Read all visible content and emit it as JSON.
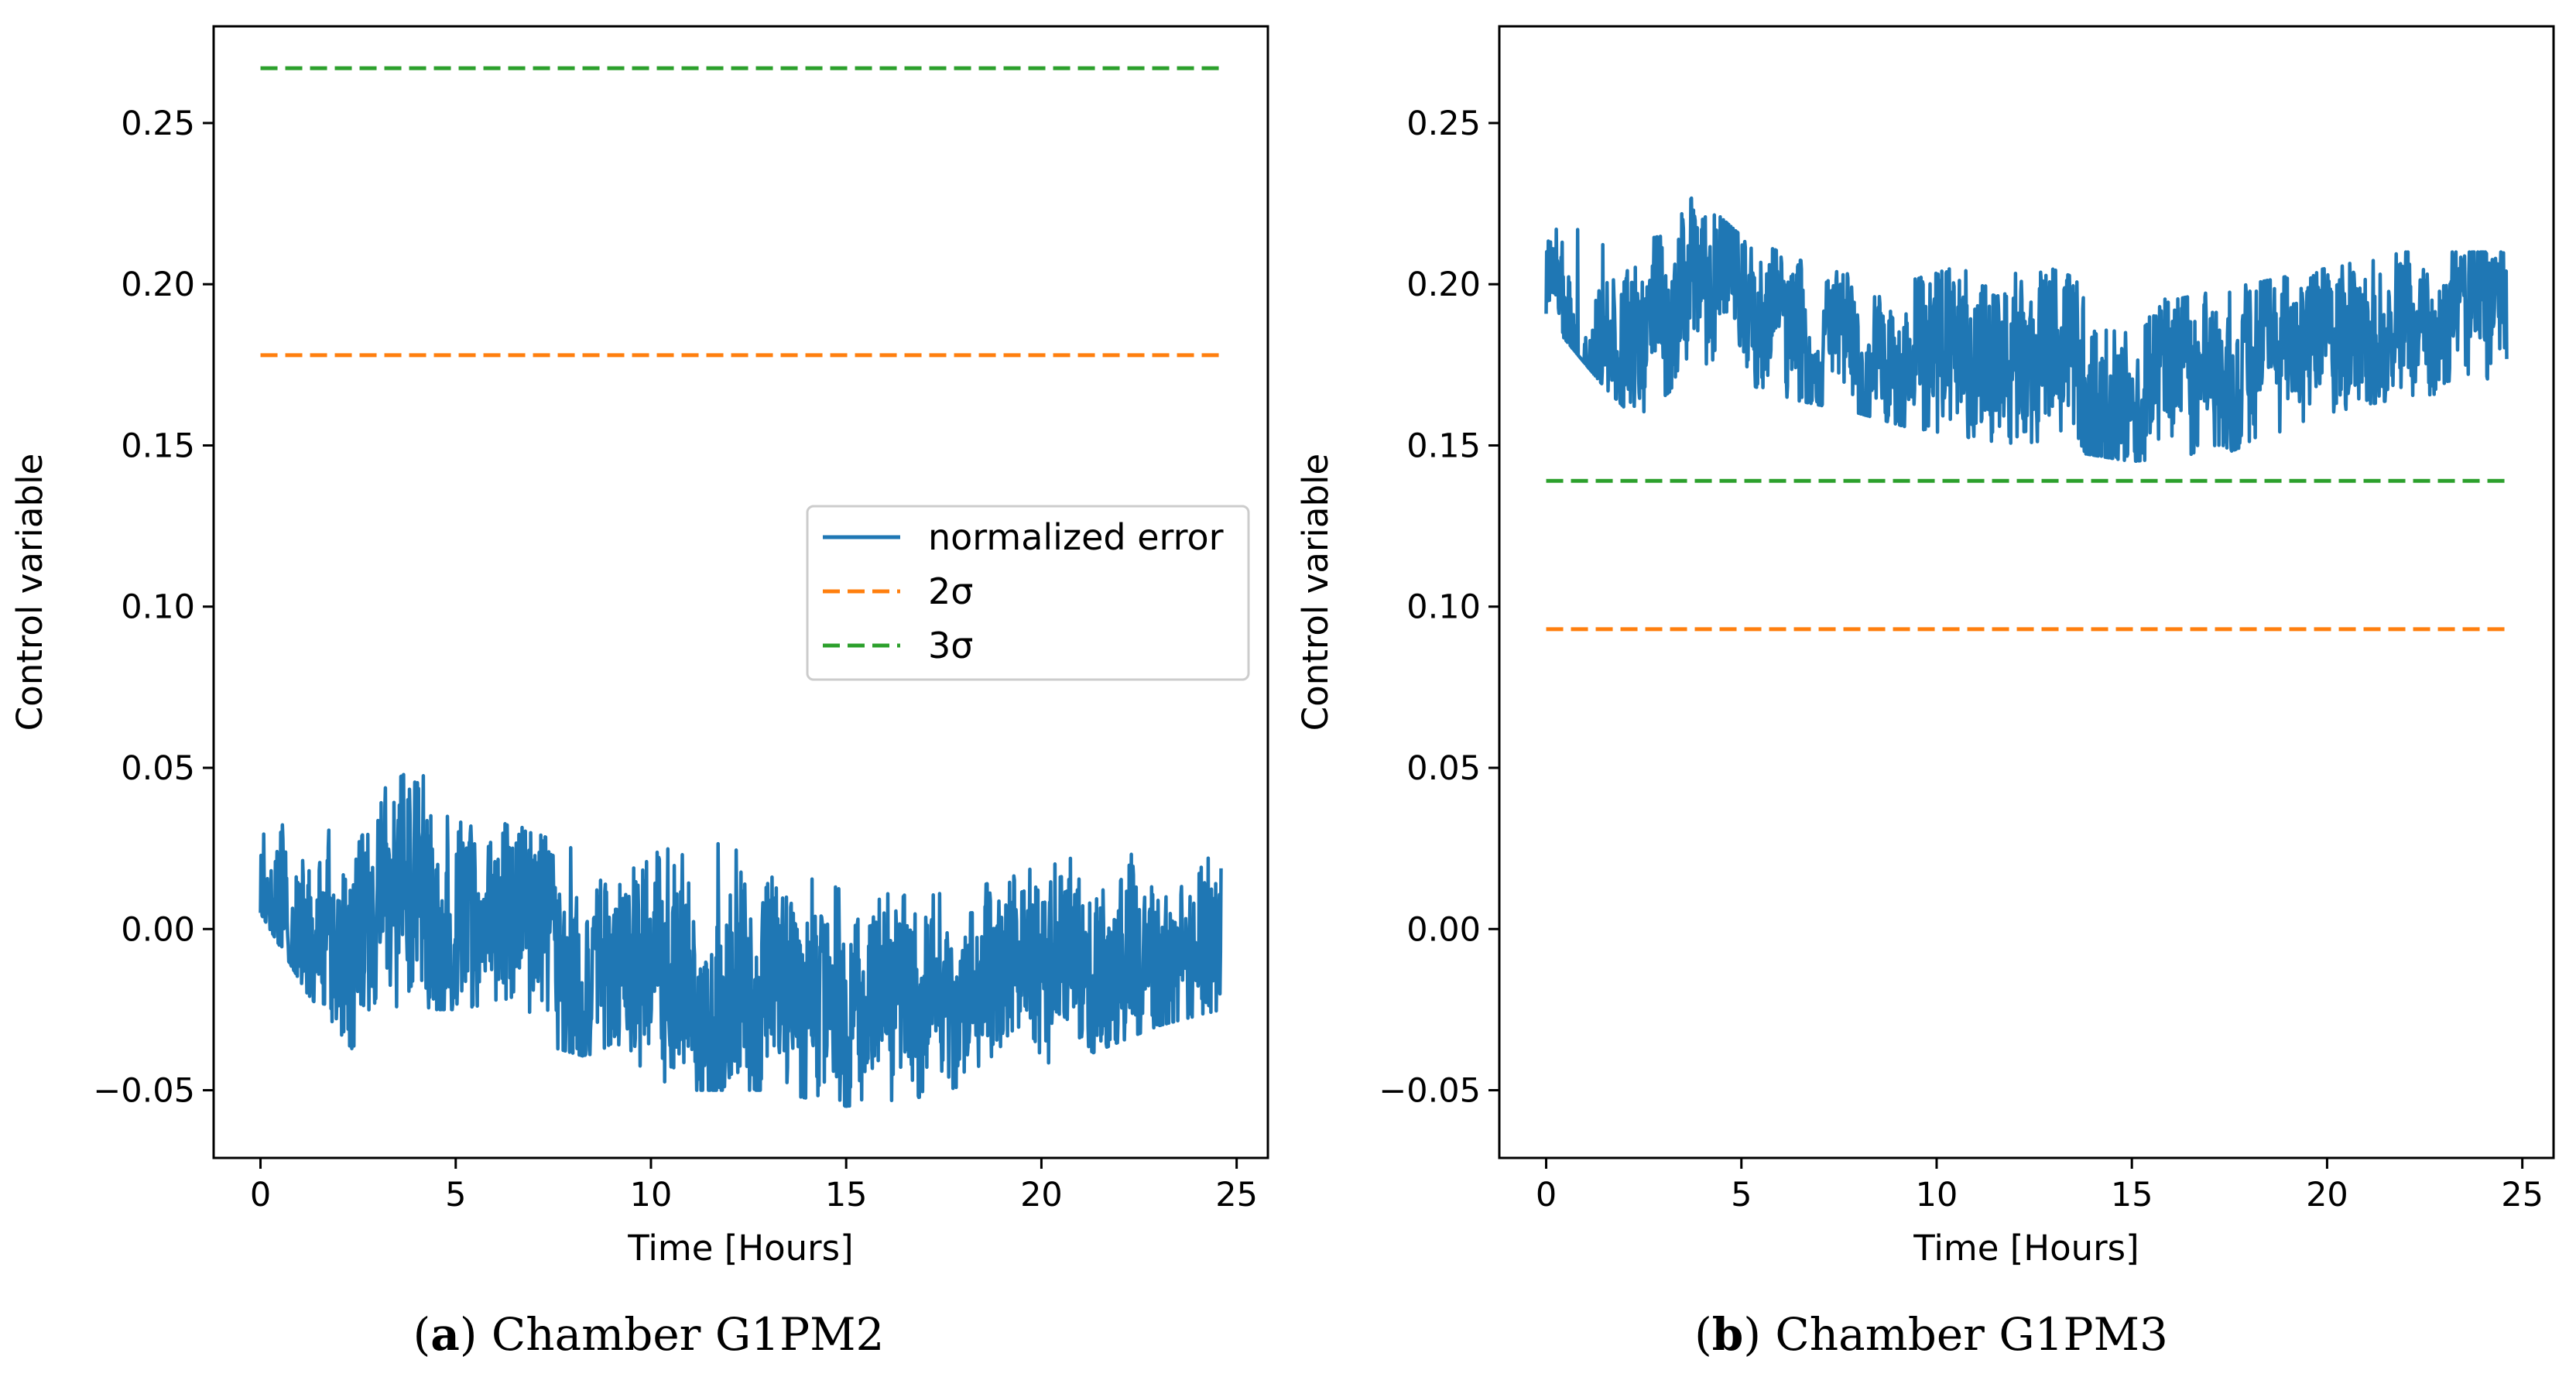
{
  "chart_data": [
    {
      "type": "line",
      "panel_letter": "a",
      "caption": "Chamber G1PM2",
      "xlabel": "Time [Hours]",
      "ylabel": "Control variable",
      "xlim": [
        -1.2,
        25.8
      ],
      "ylim": [
        -0.071,
        0.28
      ],
      "xticks": [
        0,
        5,
        10,
        15,
        20,
        25
      ],
      "yticks": [
        -0.05,
        0.0,
        0.05,
        0.1,
        0.15,
        0.2,
        0.25
      ],
      "ytick_labels": [
        "−0.05",
        "0.00",
        "0.05",
        "0.10",
        "0.15",
        "0.20",
        "0.25"
      ],
      "grid": false,
      "legend": {
        "placement": "center-right",
        "entries": [
          "normalized error",
          "2σ",
          "3σ"
        ]
      },
      "series": [
        {
          "name": "normalized error",
          "style": "solid",
          "color": "#1f77b4",
          "x_range": [
            0,
            24.6
          ],
          "trend": {
            "x": [
              0,
              1,
              2,
              3,
              4,
              5,
              6,
              7,
              8,
              9,
              10,
              11,
              12,
              13,
              14,
              15,
              16,
              17,
              18,
              19,
              20,
              21,
              22,
              23,
              24,
              24.6
            ],
            "y": [
              0.012,
              0.0,
              -0.008,
              0.005,
              0.014,
              0.008,
              0.003,
              -0.003,
              -0.007,
              -0.012,
              -0.015,
              -0.02,
              -0.022,
              -0.021,
              -0.02,
              -0.022,
              -0.02,
              -0.018,
              -0.016,
              -0.015,
              -0.012,
              -0.01,
              -0.008,
              -0.006,
              -0.005,
              -0.004
            ]
          },
          "band_min": [
            {
              "x": 0,
              "y": 0.005
            },
            {
              "x": 1.2,
              "y": -0.02
            },
            {
              "x": 2.4,
              "y": -0.038
            },
            {
              "x": 3.5,
              "y": -0.025
            },
            {
              "x": 5,
              "y": -0.025
            },
            {
              "x": 7,
              "y": -0.035
            },
            {
              "x": 9,
              "y": -0.042
            },
            {
              "x": 11,
              "y": -0.05
            },
            {
              "x": 13,
              "y": -0.05
            },
            {
              "x": 15,
              "y": -0.055
            },
            {
              "x": 17,
              "y": -0.052
            },
            {
              "x": 19,
              "y": -0.045
            },
            {
              "x": 21,
              "y": -0.04
            },
            {
              "x": 23,
              "y": -0.03
            },
            {
              "x": 24.6,
              "y": -0.025
            }
          ],
          "band_max": [
            {
              "x": 0,
              "y": 0.045
            },
            {
              "x": 1.5,
              "y": 0.03
            },
            {
              "x": 3,
              "y": 0.042
            },
            {
              "x": 3.9,
              "y": 0.05
            },
            {
              "x": 5,
              "y": 0.04
            },
            {
              "x": 7,
              "y": 0.03
            },
            {
              "x": 9,
              "y": 0.02
            },
            {
              "x": 11.3,
              "y": 0.03
            },
            {
              "x": 13,
              "y": 0.02
            },
            {
              "x": 15,
              "y": 0.012
            },
            {
              "x": 17,
              "y": 0.01
            },
            {
              "x": 19,
              "y": 0.015
            },
            {
              "x": 21,
              "y": 0.025
            },
            {
              "x": 23,
              "y": 0.025
            },
            {
              "x": 24.6,
              "y": 0.028
            }
          ]
        },
        {
          "name": "2σ",
          "style": "dashed",
          "color": "#ff7f0e",
          "x": [
            0,
            24.6
          ],
          "y": [
            0.178,
            0.178
          ]
        },
        {
          "name": "3σ",
          "style": "dashed",
          "color": "#2ca02c",
          "x": [
            0,
            24.6
          ],
          "y": [
            0.267,
            0.267
          ]
        }
      ]
    },
    {
      "type": "line",
      "panel_letter": "b",
      "caption": "Chamber G1PM3",
      "xlabel": "Time [Hours]",
      "ylabel": "Control variable",
      "xlim": [
        -1.2,
        25.8
      ],
      "ylim": [
        -0.071,
        0.28
      ],
      "xticks": [
        0,
        5,
        10,
        15,
        20,
        25
      ],
      "yticks": [
        -0.05,
        0.0,
        0.05,
        0.1,
        0.15,
        0.2,
        0.25
      ],
      "ytick_labels": [
        "−0.05",
        "0.00",
        "0.05",
        "0.10",
        "0.15",
        "0.20",
        "0.25"
      ],
      "grid": false,
      "legend": null,
      "series": [
        {
          "name": "normalized error",
          "style": "solid",
          "color": "#1f77b4",
          "x_range": [
            0,
            24.6
          ],
          "trend": {
            "x": [
              0,
              1,
              2,
              3,
              4,
              5,
              6,
              7,
              8,
              9,
              10,
              11,
              12,
              13,
              14,
              15,
              16,
              17,
              18,
              19,
              20,
              21,
              22,
              23,
              24,
              24.6
            ],
            "y": [
              0.2,
              0.188,
              0.182,
              0.192,
              0.2,
              0.195,
              0.19,
              0.182,
              0.18,
              0.177,
              0.175,
              0.172,
              0.17,
              0.172,
              0.172,
              0.17,
              0.172,
              0.172,
              0.175,
              0.178,
              0.18,
              0.182,
              0.184,
              0.185,
              0.186,
              0.186
            ]
          },
          "band_min": [
            {
              "x": 0,
              "y": 0.19
            },
            {
              "x": 1.5,
              "y": 0.168
            },
            {
              "x": 2.3,
              "y": 0.158
            },
            {
              "x": 4,
              "y": 0.175
            },
            {
              "x": 6,
              "y": 0.165
            },
            {
              "x": 8,
              "y": 0.16
            },
            {
              "x": 10,
              "y": 0.153
            },
            {
              "x": 12.5,
              "y": 0.15
            },
            {
              "x": 15,
              "y": 0.145
            },
            {
              "x": 17.5,
              "y": 0.148
            },
            {
              "x": 20,
              "y": 0.16
            },
            {
              "x": 22,
              "y": 0.165
            },
            {
              "x": 24.6,
              "y": 0.168
            }
          ],
          "band_max": [
            {
              "x": 0,
              "y": 0.223
            },
            {
              "x": 1.5,
              "y": 0.212
            },
            {
              "x": 3,
              "y": 0.215
            },
            {
              "x": 3.8,
              "y": 0.228
            },
            {
              "x": 5,
              "y": 0.215
            },
            {
              "x": 7,
              "y": 0.205
            },
            {
              "x": 9,
              "y": 0.2
            },
            {
              "x": 11.8,
              "y": 0.21
            },
            {
              "x": 14,
              "y": 0.2
            },
            {
              "x": 16,
              "y": 0.195
            },
            {
              "x": 18,
              "y": 0.2
            },
            {
              "x": 20,
              "y": 0.205
            },
            {
              "x": 22,
              "y": 0.21
            },
            {
              "x": 24.6,
              "y": 0.21
            }
          ]
        },
        {
          "name": "2σ",
          "style": "dashed",
          "color": "#ff7f0e",
          "x": [
            0,
            24.6
          ],
          "y": [
            0.093,
            0.093
          ]
        },
        {
          "name": "3σ",
          "style": "dashed",
          "color": "#2ca02c",
          "x": [
            0,
            24.6
          ],
          "y": [
            0.139,
            0.139
          ]
        }
      ]
    }
  ]
}
